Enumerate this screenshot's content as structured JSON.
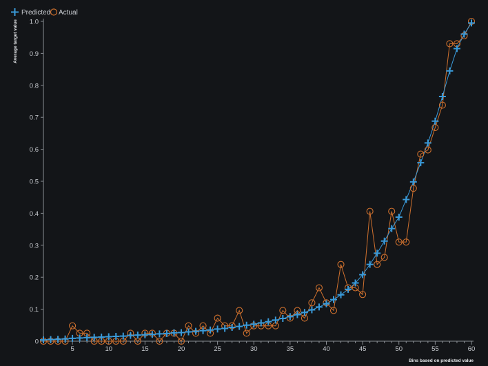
{
  "chart_data": {
    "type": "line",
    "xlabel": "Bins based on predicted value",
    "ylabel": "Average target value",
    "xlim": [
      1,
      60
    ],
    "ylim": [
      0,
      1.0
    ],
    "x_ticks": [
      5,
      10,
      15,
      20,
      25,
      30,
      35,
      40,
      45,
      50,
      55,
      60
    ],
    "y_ticks": [
      0,
      0.1,
      0.2,
      0.3,
      0.4,
      0.5,
      0.6,
      0.7,
      0.8,
      0.9,
      1.0
    ],
    "y_tick_labels": [
      "0",
      "0.1",
      "0.2",
      "0.3",
      "0.4",
      "0.5",
      "0.6",
      "0.7",
      "0.8",
      "0.9",
      "1.0"
    ],
    "grid": false,
    "legend_position": "top-left",
    "x": [
      1,
      2,
      3,
      4,
      5,
      6,
      7,
      8,
      9,
      10,
      11,
      12,
      13,
      14,
      15,
      16,
      17,
      18,
      19,
      20,
      21,
      22,
      23,
      24,
      25,
      26,
      27,
      28,
      29,
      30,
      31,
      32,
      33,
      34,
      35,
      36,
      37,
      38,
      39,
      40,
      41,
      42,
      43,
      44,
      45,
      46,
      47,
      48,
      49,
      50,
      51,
      52,
      53,
      54,
      55,
      56,
      57,
      58,
      59,
      60
    ],
    "series": [
      {
        "name": "Predicted",
        "color": "#3a9ad9",
        "marker": "plus",
        "values": [
          0.004,
          0.005,
          0.006,
          0.007,
          0.009,
          0.01,
          0.011,
          0.012,
          0.013,
          0.014,
          0.015,
          0.016,
          0.018,
          0.019,
          0.02,
          0.021,
          0.023,
          0.024,
          0.026,
          0.027,
          0.029,
          0.031,
          0.033,
          0.035,
          0.038,
          0.04,
          0.043,
          0.046,
          0.05,
          0.053,
          0.057,
          0.061,
          0.066,
          0.071,
          0.077,
          0.083,
          0.09,
          0.098,
          0.107,
          0.117,
          0.13,
          0.145,
          0.162,
          0.182,
          0.208,
          0.24,
          0.275,
          0.313,
          0.352,
          0.388,
          0.443,
          0.498,
          0.558,
          0.62,
          0.688,
          0.765,
          0.845,
          0.915,
          0.96,
          0.995
        ]
      },
      {
        "name": "Actual",
        "color": "#d0712e",
        "marker": "circle",
        "values": [
          0.0,
          0.0,
          0.0,
          0.0,
          0.048,
          0.025,
          0.025,
          0.0,
          0.0,
          0.0,
          0.0,
          0.0,
          0.025,
          0.0,
          0.025,
          0.025,
          0.0,
          0.025,
          0.025,
          0.0,
          0.048,
          0.025,
          0.048,
          0.025,
          0.072,
          0.048,
          0.048,
          0.096,
          0.025,
          0.048,
          0.048,
          0.048,
          0.048,
          0.096,
          0.072,
          0.096,
          0.072,
          0.12,
          0.167,
          0.12,
          0.096,
          0.24,
          0.167,
          0.167,
          0.146,
          0.406,
          0.24,
          0.262,
          0.406,
          0.31,
          0.31,
          0.478,
          0.585,
          0.598,
          0.668,
          0.738,
          0.93,
          0.93,
          0.955,
          1.0
        ]
      }
    ]
  }
}
